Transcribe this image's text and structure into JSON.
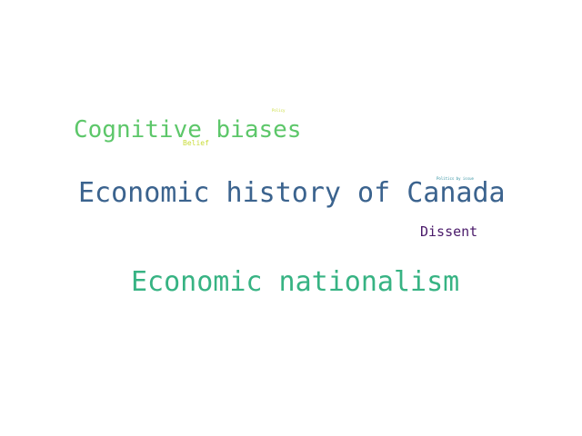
{
  "words": [
    {
      "text": "Economic history of Canada",
      "color": "#3b638e"
    },
    {
      "text": "Economic nationalism",
      "color": "#37b383"
    },
    {
      "text": "Cognitive biases",
      "color": "#5dc76a"
    },
    {
      "text": "Dissent",
      "color": "#4a1a6a"
    },
    {
      "text": "Belief",
      "color": "#c9dc3a"
    },
    {
      "text": "Policy",
      "color": "#c9dc3a"
    },
    {
      "text": "Politics by issue",
      "color": "#2f8f9f"
    }
  ]
}
